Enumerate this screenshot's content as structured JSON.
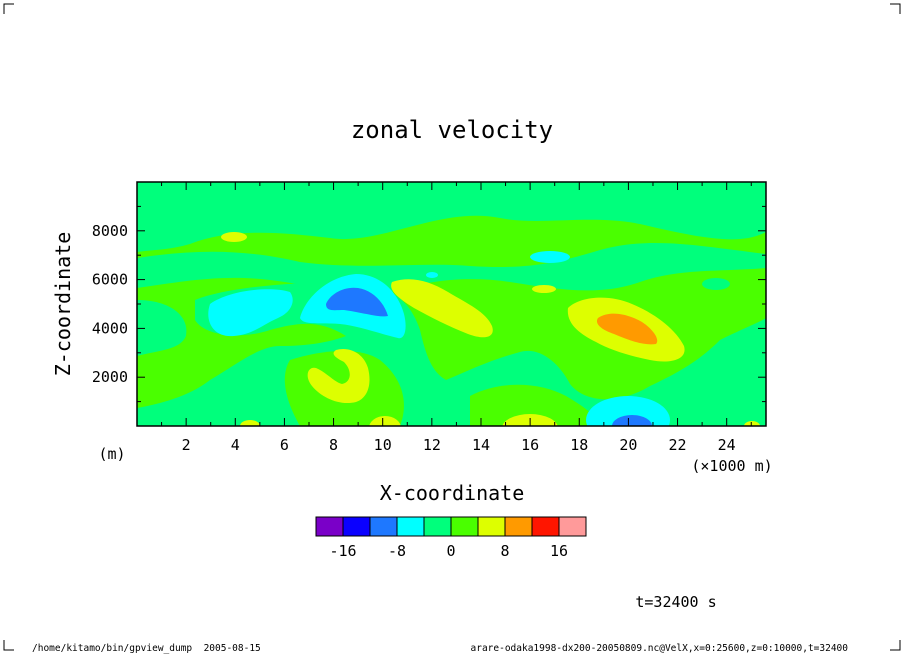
{
  "chart_data": {
    "type": "heatmap",
    "title": "zonal velocity",
    "xlabel": "X-coordinate",
    "ylabel": "Z-coordinate",
    "x_unit": "(×1000 m)",
    "y_unit": "(m)",
    "xlim": [
      0,
      25.6
    ],
    "ylim": [
      0,
      10000
    ],
    "x_ticks": [
      2,
      4,
      6,
      8,
      10,
      12,
      14,
      16,
      18,
      20,
      22,
      24
    ],
    "y_ticks": [
      2000,
      4000,
      6000,
      8000
    ],
    "colorbar": {
      "levels": [
        -20,
        -16,
        -12,
        -8,
        -4,
        0,
        4,
        8,
        12,
        16,
        20
      ],
      "tick_labels": [
        "-16",
        "-8",
        "0",
        "8",
        "16"
      ],
      "colors": [
        "#7a00c8",
        "#0a00ff",
        "#1e78ff",
        "#00ffff",
        "#00ff7c",
        "#4aff00",
        "#ddff00",
        "#ff9a00",
        "#ff1500",
        "#ff9a9a"
      ]
    },
    "features": [
      {
        "kind": "background",
        "value": 2,
        "color": "#4aff00"
      },
      {
        "kind": "region",
        "x": 1.5,
        "z": 9000,
        "value": -2,
        "color": "#00ff7c"
      },
      {
        "kind": "region",
        "x": 8.5,
        "z": 5000,
        "value": -14,
        "color": "#1e78ff"
      },
      {
        "kind": "region",
        "x": 4.5,
        "z": 4500,
        "value": -6,
        "color": "#00ffff"
      },
      {
        "kind": "region",
        "x": 12.5,
        "z": 5000,
        "value": 6,
        "color": "#ddff00"
      },
      {
        "kind": "region",
        "x": 20,
        "z": 4000,
        "value": 10,
        "color": "#ff9a00"
      },
      {
        "kind": "region",
        "x": 8,
        "z": 2200,
        "value": 6,
        "color": "#ddff00"
      },
      {
        "kind": "region",
        "x": 20,
        "z": 300,
        "value": -14,
        "color": "#1e78ff"
      }
    ]
  },
  "time_label": "t=32400 s",
  "footer": {
    "left": "/home/kitamo/bin/gpview_dump  2005-08-15",
    "right": "arare-odaka1998-dx200-20050809.nc@VelX,x=0:25600,z=0:10000,t=32400"
  }
}
